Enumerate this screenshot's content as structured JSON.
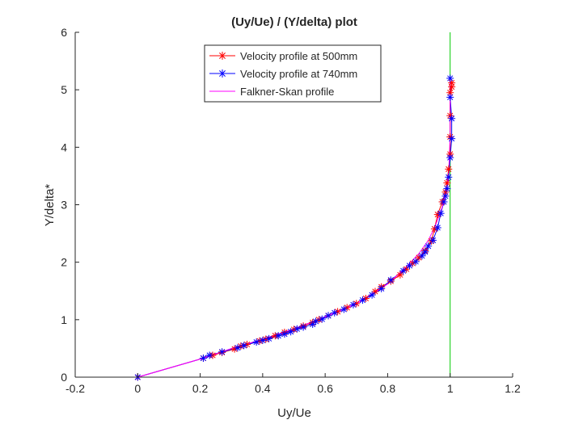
{
  "chart_data": {
    "type": "line",
    "title": "(Uy/Ue) / (Y/delta) plot",
    "xlabel": "Uy/Ue",
    "ylabel": "Y/delta*",
    "xlim": [
      -0.2,
      1.2
    ],
    "ylim": [
      0,
      6
    ],
    "xticks": [
      -0.2,
      0,
      0.2,
      0.4,
      0.6,
      0.8,
      1,
      1.2
    ],
    "yticks": [
      0,
      1,
      2,
      3,
      4,
      5,
      6
    ],
    "xtick_labels": [
      "-0.2",
      "0",
      "0.2",
      "0.4",
      "0.6",
      "0.8",
      "1",
      "1.2"
    ],
    "ytick_labels": [
      "0",
      "1",
      "2",
      "3",
      "4",
      "5",
      "6"
    ],
    "grid": false,
    "legend_position": "top-center",
    "series": [
      {
        "name": "Velocity profile at 500mm",
        "color": "#ff0000",
        "marker": "asterisk",
        "x": [
          0,
          0.21,
          0.24,
          0.27,
          0.31,
          0.33,
          0.35,
          0.39,
          0.41,
          0.44,
          0.47,
          0.5,
          0.53,
          0.56,
          0.58,
          0.61,
          0.64,
          0.67,
          0.7,
          0.73,
          0.76,
          0.78,
          0.81,
          0.84,
          0.86,
          0.88,
          0.9,
          0.92,
          0.94,
          0.95,
          0.96,
          0.975,
          0.985,
          0.99,
          0.995,
          1.0,
          1.0,
          1.0,
          1.0,
          1.005,
          1.005
        ],
        "y": [
          0,
          0.33,
          0.38,
          0.43,
          0.49,
          0.54,
          0.57,
          0.63,
          0.66,
          0.72,
          0.78,
          0.83,
          0.89,
          0.95,
          1.0,
          1.07,
          1.14,
          1.21,
          1.28,
          1.37,
          1.49,
          1.57,
          1.67,
          1.78,
          1.88,
          1.98,
          2.08,
          2.2,
          2.37,
          2.58,
          2.83,
          3.05,
          3.22,
          3.38,
          3.62,
          3.88,
          4.18,
          4.55,
          4.95,
          5.05,
          5.12
        ]
      },
      {
        "name": "Velocity profile at 740mm",
        "color": "#0000ff",
        "marker": "asterisk",
        "x": [
          0,
          0.21,
          0.23,
          0.27,
          0.32,
          0.34,
          0.38,
          0.4,
          0.42,
          0.45,
          0.47,
          0.49,
          0.51,
          0.53,
          0.56,
          0.57,
          0.59,
          0.61,
          0.63,
          0.66,
          0.69,
          0.72,
          0.75,
          0.78,
          0.81,
          0.85,
          0.87,
          0.89,
          0.91,
          0.92,
          0.93,
          0.945,
          0.96,
          0.97,
          0.98,
          0.985,
          0.99,
          0.995,
          1.0,
          1.005,
          1.005,
          1.0,
          1.0
        ],
        "y": [
          0,
          0.33,
          0.38,
          0.44,
          0.51,
          0.55,
          0.61,
          0.64,
          0.67,
          0.72,
          0.75,
          0.79,
          0.84,
          0.87,
          0.92,
          0.97,
          1.01,
          1.07,
          1.12,
          1.18,
          1.26,
          1.34,
          1.43,
          1.54,
          1.69,
          1.85,
          1.94,
          2.01,
          2.11,
          2.18,
          2.28,
          2.38,
          2.6,
          2.85,
          3.05,
          3.15,
          3.28,
          3.48,
          3.82,
          4.15,
          4.5,
          4.87,
          5.2
        ]
      },
      {
        "name": "Falkner-Skan profile",
        "color": "#ff00ff",
        "marker": "none",
        "x": [
          0,
          0.21,
          0.3,
          0.4,
          0.5,
          0.6,
          0.7,
          0.8,
          0.86,
          0.9,
          0.93,
          0.95,
          0.97,
          0.985,
          0.995,
          1.0,
          1.0
        ],
        "y": [
          0,
          0.33,
          0.5,
          0.66,
          0.84,
          1.05,
          1.28,
          1.62,
          1.92,
          2.15,
          2.38,
          2.6,
          2.88,
          3.15,
          3.5,
          4.2,
          5.2
        ]
      },
      {
        "name": "",
        "color": "#00cc00",
        "marker": "none",
        "x": [
          1,
          1
        ],
        "y": [
          0,
          6
        ]
      }
    ]
  }
}
